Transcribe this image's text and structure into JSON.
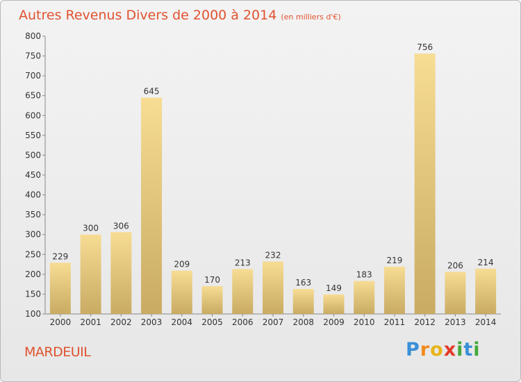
{
  "chart_data": {
    "type": "bar",
    "title": "Autres Revenus Divers de 2000 à 2014",
    "subtitle": "(en milliers d'€)",
    "categories": [
      "2000",
      "2001",
      "2002",
      "2003",
      "2004",
      "2005",
      "2006",
      "2007",
      "2008",
      "2009",
      "2010",
      "2011",
      "2012",
      "2013",
      "2014"
    ],
    "values": [
      229,
      300,
      306,
      645,
      209,
      170,
      213,
      232,
      163,
      149,
      183,
      219,
      756,
      206,
      214
    ],
    "ylim": [
      100,
      800
    ],
    "yticks": [
      100,
      150,
      200,
      250,
      300,
      350,
      400,
      450,
      500,
      550,
      600,
      650,
      700,
      750,
      800
    ],
    "grid": false,
    "bar_color_top": "#f7dc94",
    "bar_color_bottom": "#c9ab63"
  },
  "place": "MARDEUIL",
  "logo": {
    "letters": [
      "P",
      "r",
      "o",
      "x",
      "i",
      "t",
      "i"
    ],
    "colors": [
      "#3a8fd8",
      "#f08a1c",
      "#e8b418",
      "#e33a2a",
      "#44a83a",
      "#3a8fd8",
      "#44a83a"
    ]
  },
  "colors": {
    "accent": "#e0522f",
    "axis": "#888888",
    "text": "#333333"
  }
}
